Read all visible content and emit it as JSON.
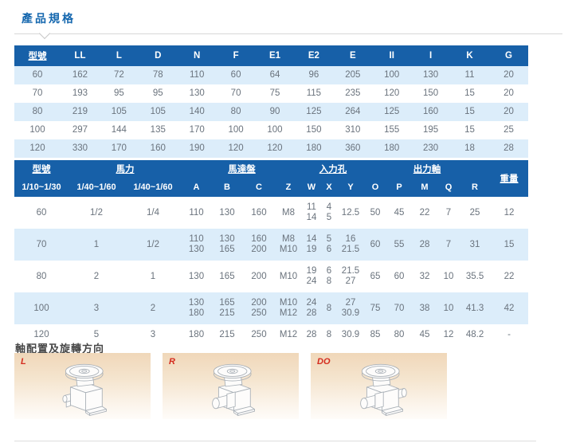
{
  "colors": {
    "header-bg": "#1760a8",
    "row-alt": "#dcedfa",
    "title-blue": "#1668af",
    "label-red": "#d42b1e",
    "body-text": "#6a737d"
  },
  "page": {
    "title": "產品規格"
  },
  "table1": {
    "headers": [
      "型號",
      "LL",
      "L",
      "D",
      "N",
      "F",
      "E1",
      "E2",
      "E",
      "II",
      "I",
      "K",
      "G"
    ],
    "rows": [
      [
        "60",
        "162",
        "72",
        "78",
        "110",
        "60",
        "64",
        "96",
        "205",
        "100",
        "130",
        "11",
        "20"
      ],
      [
        "70",
        "193",
        "95",
        "95",
        "130",
        "70",
        "75",
        "115",
        "235",
        "120",
        "150",
        "15",
        "20"
      ],
      [
        "80",
        "219",
        "105",
        "105",
        "140",
        "80",
        "90",
        "125",
        "264",
        "125",
        "160",
        "15",
        "20"
      ],
      [
        "100",
        "297",
        "144",
        "135",
        "170",
        "100",
        "100",
        "150",
        "310",
        "155",
        "195",
        "15",
        "25"
      ],
      [
        "120",
        "330",
        "170",
        "160",
        "190",
        "120",
        "120",
        "180",
        "360",
        "180",
        "230",
        "18",
        "28"
      ]
    ]
  },
  "table2": {
    "group_headers": [
      {
        "label": "型號",
        "span": 1,
        "rowspan": 1
      },
      {
        "label": "馬力",
        "span": 2,
        "rowspan": 1
      },
      {
        "label": "馬達盤",
        "span": 4,
        "rowspan": 1
      },
      {
        "label": "入力孔",
        "span": 3,
        "rowspan": 1
      },
      {
        "label": "出力軸",
        "span": 5,
        "rowspan": 1
      },
      {
        "label": "重量",
        "span": 1,
        "rowspan": 2
      }
    ],
    "sub_headers": [
      "1/10~1/30",
      "1/40~1/60",
      "1/40~1/60",
      "A",
      "B",
      "C",
      "Z",
      "W",
      "X",
      "Y",
      "O",
      "P",
      "M",
      "Q",
      "R"
    ],
    "rows": [
      [
        "60",
        "1/2",
        "1/4",
        "110",
        "130",
        "160",
        "M8",
        "11\n14",
        "4\n5",
        "12.5",
        "50",
        "45",
        "22",
        "7",
        "25",
        "12"
      ],
      [
        "70",
        "1",
        "1/2",
        "110\n130",
        "130\n165",
        "160\n200",
        "M8\nM10",
        "14\n19",
        "5\n6",
        "16\n21.5",
        "60",
        "55",
        "28",
        "7",
        "31",
        "15"
      ],
      [
        "80",
        "2",
        "1",
        "130",
        "165",
        "200",
        "M10",
        "19\n24",
        "6\n8",
        "21.5\n27",
        "65",
        "60",
        "32",
        "10",
        "35.5",
        "22"
      ],
      [
        "100",
        "3",
        "2",
        "130\n180",
        "165\n215",
        "200\n250",
        "M10\nM12",
        "24\n28",
        "8",
        "27\n30.9",
        "75",
        "70",
        "38",
        "10",
        "41.3",
        "42"
      ],
      [
        "120",
        "5",
        "3",
        "180",
        "215",
        "250",
        "M12",
        "28",
        "8",
        "30.9",
        "85",
        "80",
        "45",
        "12",
        "48.2",
        "-"
      ]
    ]
  },
  "shaft_section": {
    "title": "軸配置及旋轉方向",
    "panels": [
      {
        "label": "L",
        "drawing": "gearmotor-left-shaft"
      },
      {
        "label": "R",
        "drawing": "gearmotor-right-shaft"
      },
      {
        "label": "DO",
        "drawing": "gearmotor-double-shaft"
      }
    ]
  }
}
